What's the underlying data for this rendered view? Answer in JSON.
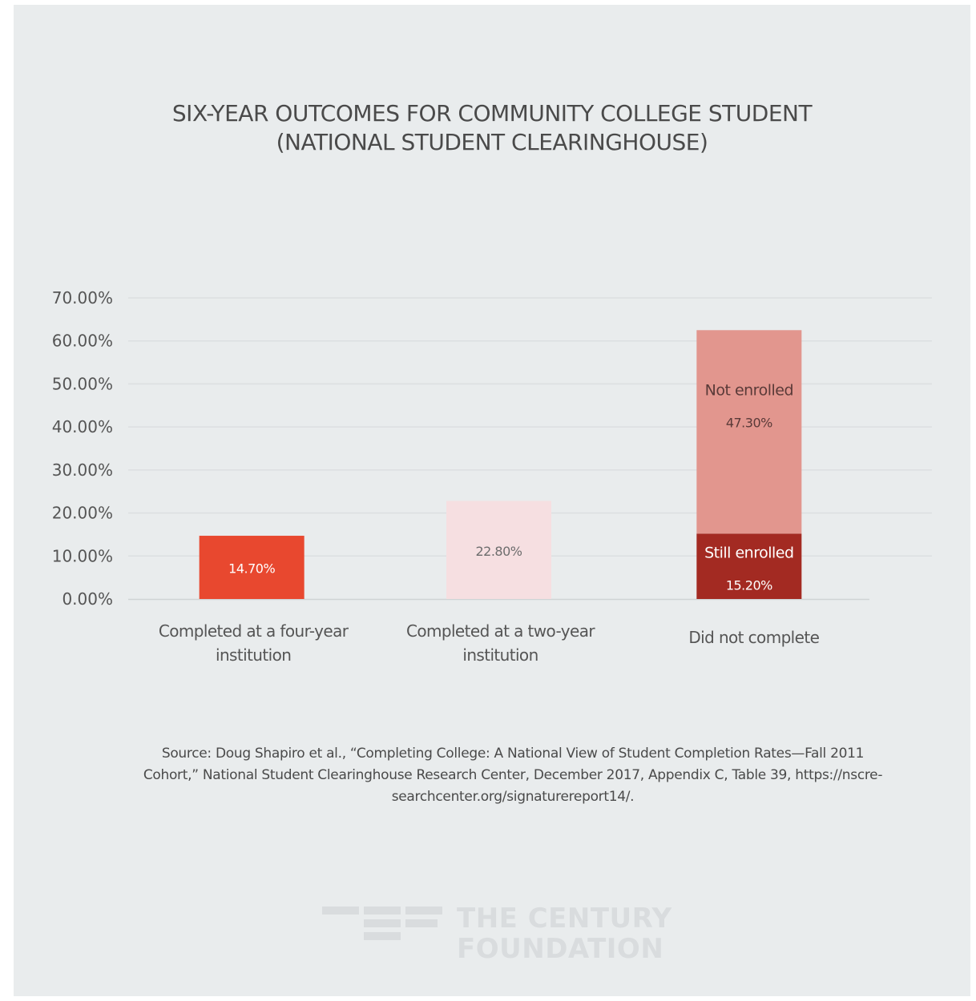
{
  "chart_data": {
    "type": "bar",
    "title": "SIX-YEAR OUTCOMES FOR COMMUNITY COLLEGE STUDENT",
    "subtitle": "(NATIONAL STUDENT CLEARINGHOUSE)",
    "ylim": [
      0,
      70
    ],
    "yticks": [
      "0.00%",
      "10.00%",
      "20.00%",
      "30.00%",
      "40.00%",
      "50.00%",
      "60.00%",
      "70.00%"
    ],
    "ytick_values": [
      0,
      10,
      20,
      30,
      40,
      50,
      60,
      70
    ],
    "grid": true,
    "categories": [
      [
        "Completed at a four-year",
        "institution"
      ],
      [
        "Completed at a two-year",
        "institution"
      ],
      [
        "Did not complete"
      ]
    ],
    "bars": [
      {
        "segments": [
          {
            "value": 14.7,
            "label": "14.70%",
            "name": "",
            "color": "#e8482f",
            "text_color": "#ffffff"
          }
        ]
      },
      {
        "segments": [
          {
            "value": 22.8,
            "label": "22.80%",
            "name": "",
            "color": "#f6dfe1",
            "text_color": "#6d6d6d"
          }
        ]
      },
      {
        "segments": [
          {
            "value": 15.2,
            "label": "15.20%",
            "name": "Still enrolled",
            "color": "#a32a22",
            "text_color": "#ffffff"
          },
          {
            "value": 47.3,
            "label": "47.30%",
            "name": "Not enrolled",
            "color": "#e2968e",
            "text_color": "#5a3a38"
          }
        ]
      }
    ]
  },
  "source_lines": [
    "Source: Doug Shapiro et al., “Completing College: A National View of Student Completion Rates—Fall 2011",
    "Cohort,” National Student Clearinghouse Research Center, December 2017, Appendix C, Table 39, https://nscre-",
    "searchcenter.org/signaturereport14/."
  ],
  "logo": {
    "line1": "THE CENTURY",
    "line2": "FOUNDATION"
  }
}
